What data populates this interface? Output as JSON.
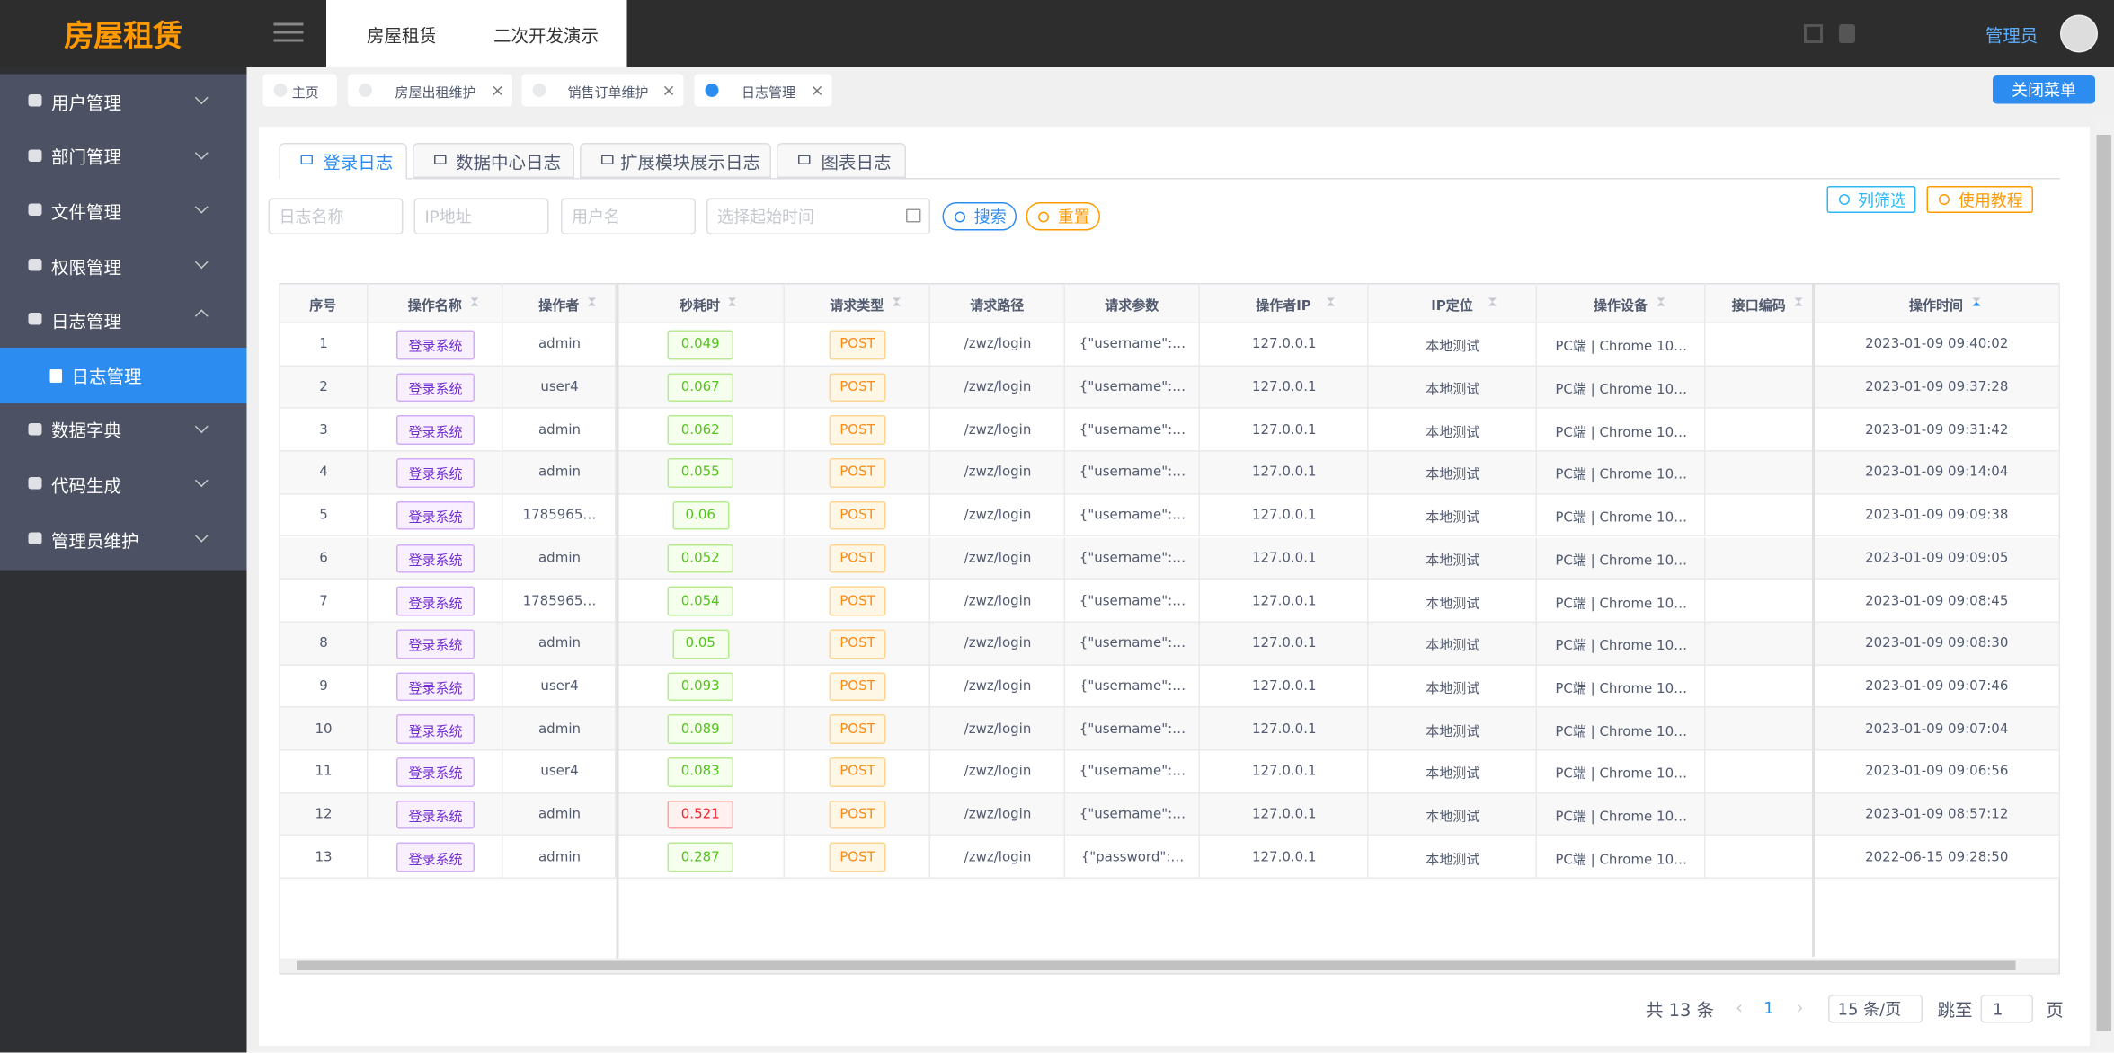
{
  "sidebar": {
    "logo": "房屋租赁",
    "menu": [
      {
        "label": "用户管理"
      },
      {
        "label": "部门管理"
      },
      {
        "label": "文件管理"
      },
      {
        "label": "权限管理"
      },
      {
        "label": "日志管理",
        "children": [
          {
            "label": "日志管理"
          }
        ]
      },
      {
        "label": "数据字典"
      },
      {
        "label": "代码生成"
      },
      {
        "label": "管理员维护"
      }
    ]
  },
  "header": {
    "nav": [
      "房屋租赁",
      "二次开发演示"
    ],
    "user": "管理员"
  },
  "page_tags": {
    "tags": [
      "主页",
      "房屋出租维护",
      "销售订单维护",
      "日志管理"
    ],
    "close_button": "关闭菜单"
  },
  "sub_tabs": [
    "登录日志",
    "数据中心日志",
    "扩展模块展示日志",
    "图表日志"
  ],
  "filters": {
    "placeholders": [
      "日志名称",
      "IP地址",
      "用户名",
      "选择起始时间"
    ],
    "search": "搜索",
    "reset": "重置",
    "columns": "列筛选",
    "tutorial": "使用教程"
  },
  "table": {
    "columns": [
      "序号",
      "操作名称",
      "操作者",
      "秒耗时",
      "请求类型",
      "请求路径",
      "请求参数",
      "操作者IP",
      "IP定位",
      "操作设备",
      "接口编码",
      "操作时间"
    ],
    "rows": [
      [
        1,
        "登录系统",
        "admin",
        0.049,
        "POST",
        "/zwz/login",
        "{\"username\":…",
        "127.0.0.1",
        "本地测试",
        "PC端 | Chrome 10…",
        "",
        "2023-01-09 09:40:02"
      ],
      [
        2,
        "登录系统",
        "user4",
        0.067,
        "POST",
        "/zwz/login",
        "{\"username\":…",
        "127.0.0.1",
        "本地测试",
        "PC端 | Chrome 10…",
        "",
        "2023-01-09 09:37:28"
      ],
      [
        3,
        "登录系统",
        "admin",
        0.062,
        "POST",
        "/zwz/login",
        "{\"username\":…",
        "127.0.0.1",
        "本地测试",
        "PC端 | Chrome 10…",
        "",
        "2023-01-09 09:31:42"
      ],
      [
        4,
        "登录系统",
        "admin",
        0.055,
        "POST",
        "/zwz/login",
        "{\"username\":…",
        "127.0.0.1",
        "本地测试",
        "PC端 | Chrome 10…",
        "",
        "2023-01-09 09:14:04"
      ],
      [
        5,
        "登录系统",
        "1785965…",
        0.06,
        "POST",
        "/zwz/login",
        "{\"username\":…",
        "127.0.0.1",
        "本地测试",
        "PC端 | Chrome 10…",
        "",
        "2023-01-09 09:09:38"
      ],
      [
        6,
        "登录系统",
        "admin",
        0.052,
        "POST",
        "/zwz/login",
        "{\"username\":…",
        "127.0.0.1",
        "本地测试",
        "PC端 | Chrome 10…",
        "",
        "2023-01-09 09:09:05"
      ],
      [
        7,
        "登录系统",
        "1785965…",
        0.054,
        "POST",
        "/zwz/login",
        "{\"username\":…",
        "127.0.0.1",
        "本地测试",
        "PC端 | Chrome 10…",
        "",
        "2023-01-09 09:08:45"
      ],
      [
        8,
        "登录系统",
        "admin",
        0.05,
        "POST",
        "/zwz/login",
        "{\"username\":…",
        "127.0.0.1",
        "本地测试",
        "PC端 | Chrome 10…",
        "",
        "2023-01-09 09:08:30"
      ],
      [
        9,
        "登录系统",
        "user4",
        0.093,
        "POST",
        "/zwz/login",
        "{\"username\":…",
        "127.0.0.1",
        "本地测试",
        "PC端 | Chrome 10…",
        "",
        "2023-01-09 09:07:46"
      ],
      [
        10,
        "登录系统",
        "admin",
        0.089,
        "POST",
        "/zwz/login",
        "{\"username\":…",
        "127.0.0.1",
        "本地测试",
        "PC端 | Chrome 10…",
        "",
        "2023-01-09 09:07:04"
      ],
      [
        11,
        "登录系统",
        "user4",
        0.083,
        "POST",
        "/zwz/login",
        "{\"username\":…",
        "127.0.0.1",
        "本地测试",
        "PC端 | Chrome 10…",
        "",
        "2023-01-09 09:06:56"
      ],
      [
        12,
        "登录系统",
        "admin",
        0.521,
        "POST",
        "/zwz/login",
        "{\"username\":…",
        "127.0.0.1",
        "本地测试",
        "PC端 | Chrome 10…",
        "",
        "2023-01-09 08:57:12"
      ],
      [
        13,
        "登录系统",
        "admin",
        0.287,
        "POST",
        "/zwz/login",
        "{\"password\":…",
        "127.0.0.1",
        "本地测试",
        "PC端 | Chrome 10…",
        "",
        "2022-06-15 09:28:50"
      ]
    ]
  },
  "pagination": {
    "total": "共 13 条",
    "page": 1,
    "page_size": "15 条/页",
    "jump": "跳至",
    "jump_value": 1,
    "page_unit": "页"
  }
}
